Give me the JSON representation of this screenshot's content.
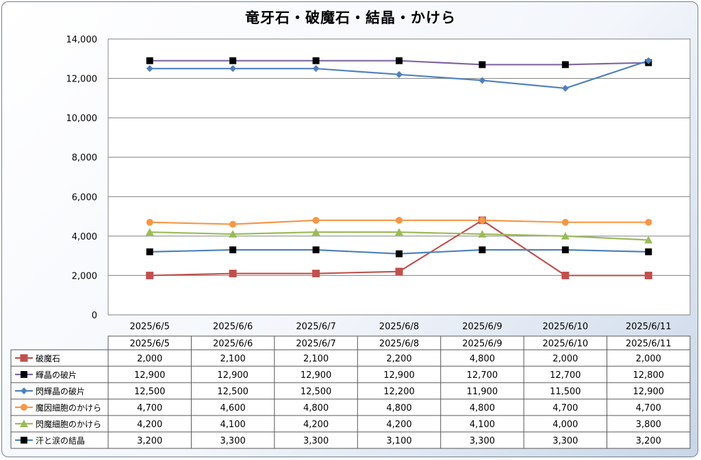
{
  "chart_data": {
    "type": "line",
    "title": "竜牙石・破魔石・結晶・かけら",
    "categories": [
      "2025/6/5",
      "2025/6/6",
      "2025/6/7",
      "2025/6/8",
      "2025/6/9",
      "2025/6/10",
      "2025/6/11"
    ],
    "y_ticks": [
      "0",
      "2,000",
      "4,000",
      "6,000",
      "8,000",
      "10,000",
      "12,000",
      "14,000"
    ],
    "ylim": [
      0,
      14000
    ],
    "grid": true,
    "legend": "data-table-below",
    "series": [
      {
        "name": "破魔石",
        "color": "#c0504d",
        "marker": "square",
        "values": [
          2000,
          2100,
          2100,
          2200,
          4800,
          2000,
          2000
        ],
        "labels": [
          "2,000",
          "2,100",
          "2,100",
          "2,200",
          "4,800",
          "2,000",
          "2,000"
        ]
      },
      {
        "name": "輝晶の破片",
        "color": "#8064a2",
        "marker": "square-black",
        "values": [
          12900,
          12900,
          12900,
          12900,
          12700,
          12700,
          12800
        ],
        "labels": [
          "12,900",
          "12,900",
          "12,900",
          "12,900",
          "12,700",
          "12,700",
          "12,800"
        ]
      },
      {
        "name": "閃輝晶の破片",
        "color": "#4f81bd",
        "marker": "diamond",
        "values": [
          12500,
          12500,
          12500,
          12200,
          11900,
          11500,
          12900
        ],
        "labels": [
          "12,500",
          "12,500",
          "12,500",
          "12,200",
          "11,900",
          "11,500",
          "12,900"
        ]
      },
      {
        "name": "魔因細胞のかけら",
        "color": "#f79646",
        "marker": "circle",
        "values": [
          4700,
          4600,
          4800,
          4800,
          4800,
          4700,
          4700
        ],
        "labels": [
          "4,700",
          "4,600",
          "4,800",
          "4,800",
          "4,800",
          "4,700",
          "4,700"
        ]
      },
      {
        "name": "閃魔細胞のかけら",
        "color": "#9bbb59",
        "marker": "triangle",
        "values": [
          4200,
          4100,
          4200,
          4200,
          4100,
          4000,
          3800
        ],
        "labels": [
          "4,200",
          "4,100",
          "4,200",
          "4,200",
          "4,100",
          "4,000",
          "3,800"
        ]
      },
      {
        "name": "汗と涙の結晶",
        "color": "#4f81bd",
        "marker": "square-black",
        "values": [
          3200,
          3300,
          3300,
          3100,
          3300,
          3300,
          3200
        ],
        "labels": [
          "3,200",
          "3,300",
          "3,300",
          "3,100",
          "3,300",
          "3,300",
          "3,200"
        ]
      }
    ]
  }
}
